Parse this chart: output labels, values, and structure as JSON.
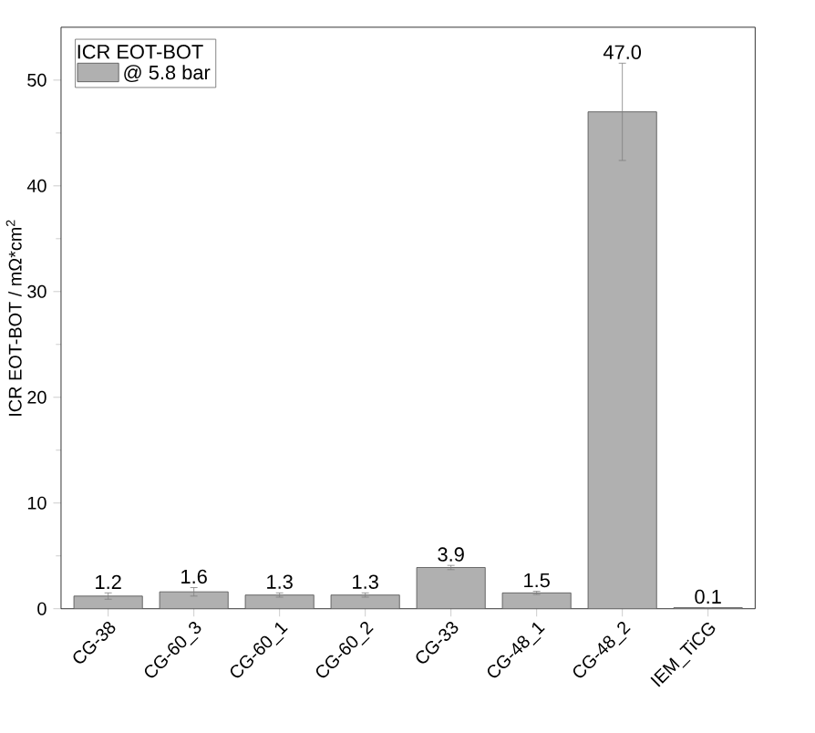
{
  "chart_data": {
    "type": "bar",
    "ylabel": "ICR EOT-BOT / mΩ*cm$^{2}$",
    "legend_title": "ICR EOT-BOT",
    "categories": [
      "CG-38",
      "CG-60_3",
      "CG-60_1",
      "CG-60_2",
      "CG-33",
      "CG-48_1",
      "CG-48_2",
      "IEM_TiCG"
    ],
    "series": [
      {
        "name": "@ 5.8 bar",
        "color": "#b0b0b0",
        "values": [
          1.2,
          1.6,
          1.3,
          1.3,
          3.9,
          1.5,
          47.0,
          0.1
        ],
        "errors": [
          0.3,
          0.4,
          0.2,
          0.2,
          0.2,
          0.15,
          4.6,
          null
        ],
        "value_labels": [
          "1.2",
          "1.6",
          "1.3",
          "1.3",
          "3.9",
          "1.5",
          "47.0",
          "0.1"
        ]
      }
    ],
    "ylim": [
      0,
      55
    ],
    "yticks": [
      0,
      10,
      20,
      30,
      40,
      50
    ],
    "legend": "top left",
    "grid": false
  }
}
